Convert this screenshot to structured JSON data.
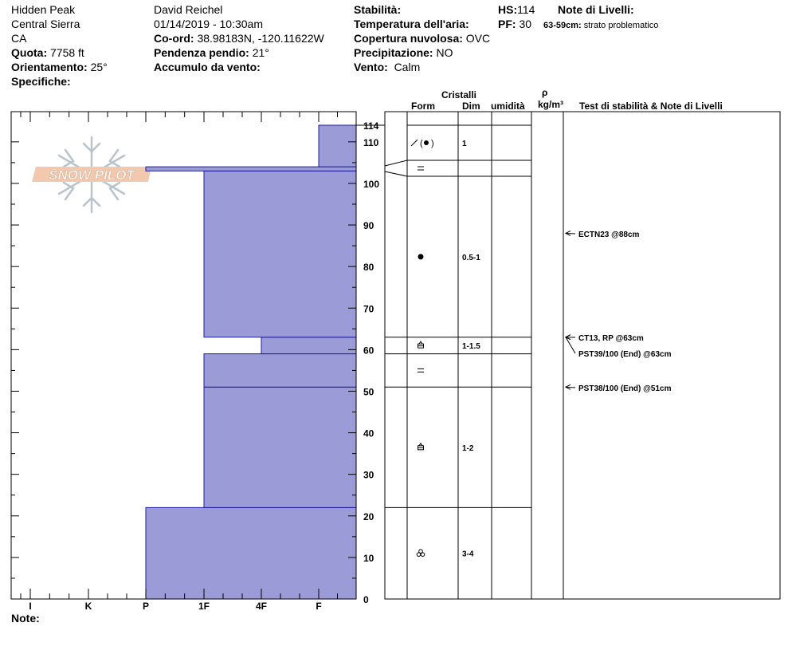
{
  "header": {
    "location": "Hidden Peak",
    "range": "Central Sierra",
    "state": "CA",
    "elevation_label": "Quota:",
    "elevation": "7758 ft",
    "aspect_label": "Orientamento:",
    "aspect": "25°",
    "specifics_label": "Specifiche:",
    "observer": "David Reichel",
    "datetime": "01/14/2019 - 10:30am",
    "coord_label": "Co-ord:",
    "coord": "38.98183N, -120.11622W",
    "slope_label": "Pendenza pendio:",
    "slope": "21°",
    "wind_loading_label": "Accumulo da vento:",
    "stability_label": "Stabilità:",
    "air_temp_label": "Temperatura dell'aria:",
    "sky_label": "Copertura nuvolosa:",
    "sky": "OVC",
    "precip_label": "Precipitazione:",
    "precip": "NO",
    "wind_label": "Vento:",
    "wind": "Calm",
    "hs_label": "HS:",
    "hs": "114",
    "pf_label": "PF:",
    "pf": "30",
    "layer_notes_label": "Note di Livelli:",
    "layer_note_range": "63-59cm:",
    "layer_note_text": "strato problematico"
  },
  "columns": {
    "crystals": "Cristalli",
    "form": "Form",
    "size": "Dim",
    "moisture": "umidità",
    "rho": "ρ",
    "density_unit": "kg/m³",
    "tests": "Test di stabilità & Note di Livelli"
  },
  "logo_text": "SNOW PILOT",
  "notes_label": "Note:",
  "chart_data": {
    "type": "bar",
    "title": "",
    "ylabel": "",
    "xlabel": "",
    "ylim": [
      0,
      114
    ],
    "y_ticks": [
      0,
      10,
      20,
      30,
      40,
      50,
      60,
      70,
      80,
      90,
      100,
      110,
      114
    ],
    "hardness_scale": [
      "I",
      "K",
      "P",
      "1F",
      "4F",
      "F"
    ],
    "hardness_profile": [
      {
        "bottom": 0,
        "top": 22,
        "hardness": "P"
      },
      {
        "bottom": 22,
        "top": 51,
        "hardness": "1F"
      },
      {
        "bottom": 51,
        "top": 59,
        "hardness": "1F"
      },
      {
        "bottom": 59,
        "top": 63,
        "hardness": "4F"
      },
      {
        "bottom": 63,
        "top": 103,
        "hardness": "1F"
      },
      {
        "bottom": 103,
        "top": 104,
        "hardness": "P"
      },
      {
        "bottom": 104,
        "top": 114,
        "hardness": "F"
      }
    ],
    "layers": [
      {
        "top": 114,
        "bottom": 104,
        "form": "precipitation-particles-icon",
        "size": "1"
      },
      {
        "top": 104,
        "bottom": 103,
        "form": "faceted-icon",
        "size": ""
      },
      {
        "top": 103,
        "bottom": 63,
        "form": "rounded-grain-icon",
        "size": "0.5-1"
      },
      {
        "top": 63,
        "bottom": 59,
        "form": "depth-hoar-icon",
        "size": "1-1.5"
      },
      {
        "top": 59,
        "bottom": 51,
        "form": "faceted-icon",
        "size": ""
      },
      {
        "top": 51,
        "bottom": 22,
        "form": "depth-hoar-icon",
        "size": "1-2"
      },
      {
        "top": 22,
        "bottom": 0,
        "form": "melt-form-icon",
        "size": "3-4"
      }
    ],
    "tests": [
      {
        "label": "ECTN23 @88cm",
        "depth": 88
      },
      {
        "label": "CT13, RP @63cm",
        "depth": 63
      },
      {
        "label": "PST39/100 (End) @63cm",
        "depth": 63
      },
      {
        "label": "PST38/100 (End) @51cm",
        "depth": 51
      }
    ]
  }
}
